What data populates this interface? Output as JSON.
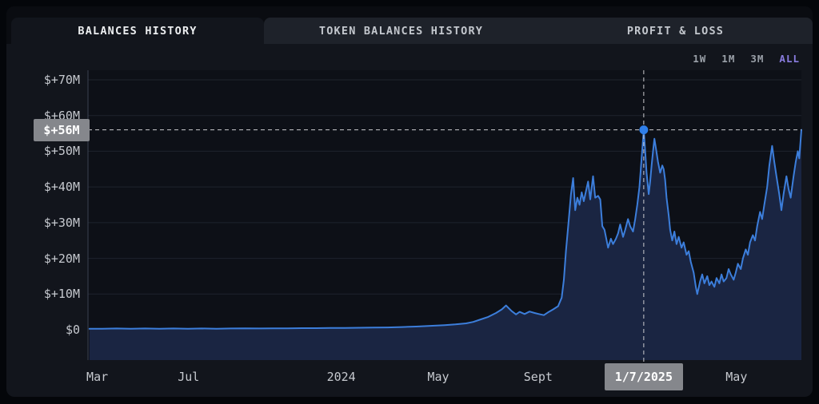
{
  "tabs": [
    {
      "label": "BALANCES HISTORY",
      "active": true
    },
    {
      "label": "TOKEN BALANCES HISTORY",
      "active": false
    },
    {
      "label": "PROFIT & LOSS",
      "active": false
    }
  ],
  "ranges": [
    {
      "label": "1W",
      "active": false
    },
    {
      "label": "1M",
      "active": false
    },
    {
      "label": "3M",
      "active": false
    },
    {
      "label": "ALL",
      "active": true
    }
  ],
  "chart_data": {
    "type": "area",
    "unit": "USD millions",
    "ylim": [
      -8.5,
      72.5
    ],
    "grid": "horizontal-only",
    "y_ticks": [
      {
        "label": "$+70M",
        "value": 70
      },
      {
        "label": "$+60M",
        "value": 60
      },
      {
        "label": "$+50M",
        "value": 50
      },
      {
        "label": "$+40M",
        "value": 40
      },
      {
        "label": "$+30M",
        "value": 30
      },
      {
        "label": "$+20M",
        "value": 20
      },
      {
        "label": "$+10M",
        "value": 10
      },
      {
        "label": "$0",
        "value": 0
      }
    ],
    "x_ticks": [
      {
        "label": "Mar",
        "pct": 1.3
      },
      {
        "label": "Jul",
        "pct": 14.1
      },
      {
        "label": "2024",
        "pct": 35.5
      },
      {
        "label": "May",
        "pct": 49.1
      },
      {
        "label": "Sept",
        "pct": 63.1
      },
      {
        "label": "May",
        "pct": 90.9
      }
    ],
    "crosshair": {
      "x_pct": 77.9,
      "value": 56,
      "value_label": "$+56M",
      "date_label": "1/7/2025"
    },
    "series": [
      {
        "name": "balance",
        "points": [
          [
            0.2,
            0.3
          ],
          [
            2,
            0.3
          ],
          [
            4,
            0.35
          ],
          [
            6,
            0.3
          ],
          [
            8,
            0.35
          ],
          [
            10,
            0.3
          ],
          [
            12,
            0.35
          ],
          [
            14,
            0.3
          ],
          [
            16,
            0.35
          ],
          [
            18,
            0.3
          ],
          [
            20,
            0.35
          ],
          [
            22,
            0.4
          ],
          [
            24,
            0.35
          ],
          [
            26,
            0.4
          ],
          [
            28,
            0.4
          ],
          [
            30,
            0.45
          ],
          [
            32,
            0.45
          ],
          [
            34,
            0.5
          ],
          [
            36,
            0.5
          ],
          [
            38,
            0.55
          ],
          [
            40,
            0.6
          ],
          [
            42,
            0.65
          ],
          [
            44,
            0.75
          ],
          [
            46,
            0.9
          ],
          [
            48,
            1.1
          ],
          [
            50,
            1.3
          ],
          [
            51.5,
            1.5
          ],
          [
            53,
            1.8
          ],
          [
            54,
            2.2
          ],
          [
            54.9,
            2.8
          ],
          [
            56.1,
            3.6
          ],
          [
            57.2,
            4.7
          ],
          [
            58,
            5.7
          ],
          [
            58.6,
            6.8
          ],
          [
            59.4,
            5.2
          ],
          [
            60,
            4.3
          ],
          [
            60.5,
            5.0
          ],
          [
            61.2,
            4.4
          ],
          [
            61.9,
            5.1
          ],
          [
            62.6,
            4.7
          ],
          [
            63.2,
            4.4
          ],
          [
            63.9,
            4.1
          ],
          [
            64.6,
            5.0
          ],
          [
            65.2,
            5.7
          ],
          [
            65.9,
            6.6
          ],
          [
            66.4,
            9.0
          ],
          [
            66.7,
            14.0
          ],
          [
            67.0,
            22.0
          ],
          [
            67.4,
            31.0
          ],
          [
            67.7,
            38.0
          ],
          [
            68.0,
            42.5
          ],
          [
            68.3,
            33.5
          ],
          [
            68.6,
            37.0
          ],
          [
            68.9,
            35.0
          ],
          [
            69.2,
            38.5
          ],
          [
            69.5,
            36.0
          ],
          [
            70.1,
            41.5
          ],
          [
            70.4,
            36.5
          ],
          [
            70.8,
            43.0
          ],
          [
            71.1,
            37.0
          ],
          [
            71.5,
            37.5
          ],
          [
            71.8,
            36.5
          ],
          [
            72.1,
            29.0
          ],
          [
            72.4,
            28.0
          ],
          [
            72.9,
            23.0
          ],
          [
            73.3,
            25.5
          ],
          [
            73.6,
            24.0
          ],
          [
            74.0,
            25.5
          ],
          [
            74.3,
            27.0
          ],
          [
            74.6,
            29.5
          ],
          [
            75.0,
            26.0
          ],
          [
            75.3,
            28.0
          ],
          [
            75.7,
            31.0
          ],
          [
            76.0,
            29.0
          ],
          [
            76.4,
            27.5
          ],
          [
            76.7,
            31.0
          ],
          [
            77.0,
            35.0
          ],
          [
            77.3,
            40.0
          ],
          [
            77.6,
            48.0
          ],
          [
            77.9,
            56.0
          ],
          [
            78.1,
            50.0
          ],
          [
            78.3,
            44.0
          ],
          [
            78.6,
            38.0
          ],
          [
            78.8,
            41.5
          ],
          [
            79.0,
            46.0
          ],
          [
            79.2,
            50.0
          ],
          [
            79.4,
            53.5
          ],
          [
            79.6,
            51.0
          ],
          [
            79.9,
            47.0
          ],
          [
            80.2,
            44.0
          ],
          [
            80.5,
            46.0
          ],
          [
            80.7,
            45.0
          ],
          [
            80.9,
            42.0
          ],
          [
            81.1,
            37.0
          ],
          [
            81.4,
            32.0
          ],
          [
            81.6,
            28.0
          ],
          [
            81.9,
            25.0
          ],
          [
            82.2,
            27.5
          ],
          [
            82.5,
            24.0
          ],
          [
            82.8,
            26.0
          ],
          [
            83.2,
            23.0
          ],
          [
            83.5,
            24.5
          ],
          [
            83.9,
            21.0
          ],
          [
            84.2,
            22.0
          ],
          [
            84.5,
            19.0
          ],
          [
            84.9,
            16.0
          ],
          [
            85.2,
            12.0
          ],
          [
            85.4,
            10.0
          ],
          [
            85.8,
            13.5
          ],
          [
            86.1,
            15.5
          ],
          [
            86.4,
            13.0
          ],
          [
            86.8,
            15.0
          ],
          [
            87.1,
            12.5
          ],
          [
            87.4,
            13.5
          ],
          [
            87.8,
            12.0
          ],
          [
            88.1,
            14.5
          ],
          [
            88.5,
            13.0
          ],
          [
            88.8,
            15.5
          ],
          [
            89.1,
            13.5
          ],
          [
            89.5,
            14.5
          ],
          [
            89.8,
            17.0
          ],
          [
            90.1,
            15.5
          ],
          [
            90.5,
            14.0
          ],
          [
            90.8,
            16.0
          ],
          [
            91.1,
            18.5
          ],
          [
            91.5,
            17.0
          ],
          [
            91.8,
            20.0
          ],
          [
            92.2,
            22.5
          ],
          [
            92.5,
            21.0
          ],
          [
            92.8,
            24.5
          ],
          [
            93.2,
            26.5
          ],
          [
            93.5,
            25.0
          ],
          [
            93.8,
            29.0
          ],
          [
            94.2,
            33.0
          ],
          [
            94.5,
            31.0
          ],
          [
            94.8,
            35.0
          ],
          [
            95.2,
            40.0
          ],
          [
            95.5,
            46.0
          ],
          [
            95.9,
            51.5
          ],
          [
            96.2,
            47.0
          ],
          [
            96.5,
            43.0
          ],
          [
            96.9,
            38.0
          ],
          [
            97.2,
            33.5
          ],
          [
            97.5,
            38.0
          ],
          [
            97.9,
            43.0
          ],
          [
            98.2,
            39.5
          ],
          [
            98.5,
            37.0
          ],
          [
            98.9,
            43.0
          ],
          [
            99.2,
            47.0
          ],
          [
            99.5,
            50.0
          ],
          [
            99.7,
            48.0
          ],
          [
            100,
            56.0
          ]
        ]
      }
    ],
    "colors": {
      "line": "#3c7edb",
      "fill": "#1a2542",
      "plot_bg": "#0d1017",
      "grid": "#1e232e",
      "axis": "#3a4150",
      "crosshair": "#cccccf",
      "marker": "#2f7ee8",
      "tooltip_bg": "#85878c",
      "label": "#c6c9cf",
      "range_active": "#8a7de0"
    }
  }
}
